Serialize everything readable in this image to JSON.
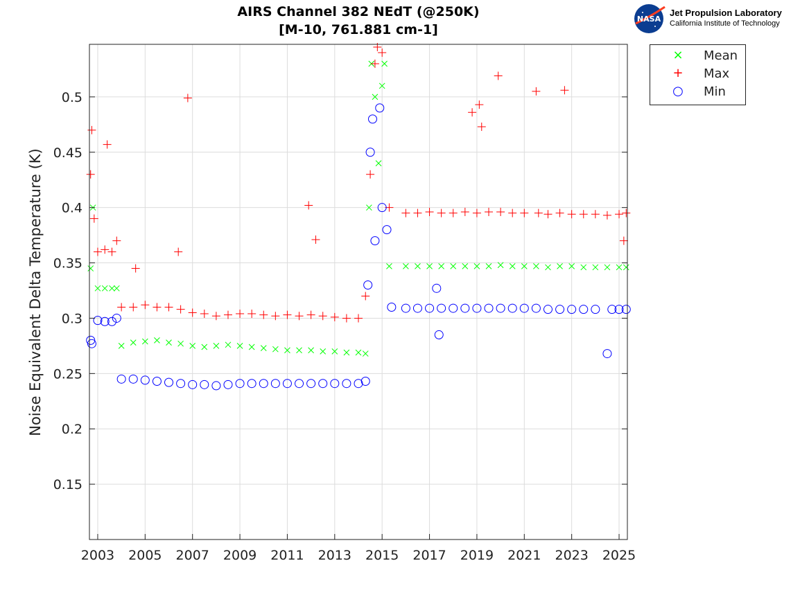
{
  "title_line1": "AIRS Channel 382 NEdT (@250K)",
  "title_line2": "[M-10, 761.881 cm-1]",
  "logo": {
    "nasa_text": "NASA",
    "line1": "Jet Propulsion Laboratory",
    "line2": "California Institute of Technology"
  },
  "chart_data": {
    "type": "scatter",
    "title": "AIRS Channel 382 NEdT (@250K) [M-10, 761.881 cm-1]",
    "xlabel": "",
    "ylabel": "Noise Equivalent Delta Temperature (K)",
    "xlim": [
      2002.65,
      2025.35
    ],
    "ylim": [
      0.1,
      0.5475
    ],
    "xticks": [
      "2003",
      "2005",
      "2007",
      "2009",
      "2011",
      "2013",
      "2015",
      "2017",
      "2019",
      "2021",
      "2023",
      "2025"
    ],
    "yticks": [
      "0.15",
      "0.2",
      "0.25",
      "0.3",
      "0.35",
      "0.4",
      "0.45",
      "0.5"
    ],
    "grid": true,
    "legend_position": "outside-top-right",
    "series": [
      {
        "name": "Mean",
        "marker": "x",
        "color": "#00ff00",
        "points": [
          [
            2002.7,
            0.345
          ],
          [
            2002.8,
            0.4
          ],
          [
            2003.0,
            0.327
          ],
          [
            2003.3,
            0.327
          ],
          [
            2003.6,
            0.327
          ],
          [
            2003.8,
            0.327
          ],
          [
            2004.0,
            0.275
          ],
          [
            2004.5,
            0.278
          ],
          [
            2005.0,
            0.279
          ],
          [
            2005.5,
            0.28
          ],
          [
            2006.0,
            0.278
          ],
          [
            2006.5,
            0.277
          ],
          [
            2007.0,
            0.275
          ],
          [
            2007.5,
            0.274
          ],
          [
            2008.0,
            0.275
          ],
          [
            2008.5,
            0.276
          ],
          [
            2009.0,
            0.275
          ],
          [
            2009.5,
            0.274
          ],
          [
            2010.0,
            0.273
          ],
          [
            2010.5,
            0.272
          ],
          [
            2011.0,
            0.271
          ],
          [
            2011.5,
            0.271
          ],
          [
            2012.0,
            0.271
          ],
          [
            2012.5,
            0.27
          ],
          [
            2013.0,
            0.27
          ],
          [
            2013.5,
            0.269
          ],
          [
            2014.0,
            0.269
          ],
          [
            2014.3,
            0.268
          ],
          [
            2014.45,
            0.4
          ],
          [
            2014.55,
            0.53
          ],
          [
            2014.7,
            0.5
          ],
          [
            2014.85,
            0.44
          ],
          [
            2015.0,
            0.51
          ],
          [
            2015.1,
            0.53
          ],
          [
            2015.3,
            0.347
          ],
          [
            2016.0,
            0.347
          ],
          [
            2016.5,
            0.347
          ],
          [
            2017.0,
            0.347
          ],
          [
            2017.5,
            0.347
          ],
          [
            2018.0,
            0.347
          ],
          [
            2018.5,
            0.347
          ],
          [
            2019.0,
            0.347
          ],
          [
            2019.5,
            0.347
          ],
          [
            2020.0,
            0.348
          ],
          [
            2020.5,
            0.347
          ],
          [
            2021.0,
            0.347
          ],
          [
            2021.5,
            0.347
          ],
          [
            2022.0,
            0.346
          ],
          [
            2022.5,
            0.347
          ],
          [
            2023.0,
            0.347
          ],
          [
            2023.5,
            0.346
          ],
          [
            2024.0,
            0.346
          ],
          [
            2024.5,
            0.346
          ],
          [
            2025.0,
            0.346
          ],
          [
            2025.3,
            0.346
          ]
        ]
      },
      {
        "name": "Max",
        "marker": "+",
        "color": "#ff0000",
        "points": [
          [
            2002.7,
            0.43
          ],
          [
            2002.75,
            0.47
          ],
          [
            2002.85,
            0.39
          ],
          [
            2003.0,
            0.36
          ],
          [
            2003.3,
            0.362
          ],
          [
            2003.4,
            0.457
          ],
          [
            2003.6,
            0.36
          ],
          [
            2003.8,
            0.37
          ],
          [
            2004.0,
            0.31
          ],
          [
            2004.5,
            0.31
          ],
          [
            2004.6,
            0.345
          ],
          [
            2005.0,
            0.312
          ],
          [
            2005.5,
            0.31
          ],
          [
            2006.0,
            0.31
          ],
          [
            2006.4,
            0.36
          ],
          [
            2006.5,
            0.308
          ],
          [
            2006.8,
            0.499
          ],
          [
            2007.0,
            0.305
          ],
          [
            2007.5,
            0.304
          ],
          [
            2008.0,
            0.302
          ],
          [
            2008.5,
            0.303
          ],
          [
            2009.0,
            0.304
          ],
          [
            2009.5,
            0.304
          ],
          [
            2010.0,
            0.303
          ],
          [
            2010.5,
            0.302
          ],
          [
            2011.0,
            0.303
          ],
          [
            2011.5,
            0.302
          ],
          [
            2011.9,
            0.402
          ],
          [
            2012.0,
            0.303
          ],
          [
            2012.2,
            0.371
          ],
          [
            2012.5,
            0.302
          ],
          [
            2013.0,
            0.301
          ],
          [
            2013.5,
            0.3
          ],
          [
            2014.0,
            0.3
          ],
          [
            2014.3,
            0.32
          ],
          [
            2014.5,
            0.43
          ],
          [
            2014.7,
            0.53
          ],
          [
            2014.8,
            0.545
          ],
          [
            2015.0,
            0.54
          ],
          [
            2015.3,
            0.4
          ],
          [
            2016.0,
            0.395
          ],
          [
            2016.5,
            0.395
          ],
          [
            2017.0,
            0.396
          ],
          [
            2017.5,
            0.395
          ],
          [
            2018.0,
            0.395
          ],
          [
            2018.5,
            0.396
          ],
          [
            2018.8,
            0.486
          ],
          [
            2019.0,
            0.395
          ],
          [
            2019.1,
            0.493
          ],
          [
            2019.2,
            0.473
          ],
          [
            2019.5,
            0.396
          ],
          [
            2019.9,
            0.519
          ],
          [
            2020.0,
            0.396
          ],
          [
            2020.5,
            0.395
          ],
          [
            2021.0,
            0.395
          ],
          [
            2021.5,
            0.505
          ],
          [
            2021.6,
            0.395
          ],
          [
            2022.0,
            0.394
          ],
          [
            2022.5,
            0.395
          ],
          [
            2022.7,
            0.506
          ],
          [
            2023.0,
            0.394
          ],
          [
            2023.5,
            0.394
          ],
          [
            2024.0,
            0.394
          ],
          [
            2024.5,
            0.393
          ],
          [
            2025.0,
            0.394
          ],
          [
            2025.2,
            0.37
          ],
          [
            2025.3,
            0.395
          ]
        ]
      },
      {
        "name": "Min",
        "marker": "o",
        "color": "#0000ff",
        "points": [
          [
            2002.7,
            0.28
          ],
          [
            2002.75,
            0.277
          ],
          [
            2003.0,
            0.298
          ],
          [
            2003.3,
            0.297
          ],
          [
            2003.6,
            0.297
          ],
          [
            2003.8,
            0.3
          ],
          [
            2004.0,
            0.245
          ],
          [
            2004.5,
            0.245
          ],
          [
            2005.0,
            0.244
          ],
          [
            2005.5,
            0.243
          ],
          [
            2006.0,
            0.242
          ],
          [
            2006.5,
            0.241
          ],
          [
            2007.0,
            0.24
          ],
          [
            2007.5,
            0.24
          ],
          [
            2008.0,
            0.239
          ],
          [
            2008.5,
            0.24
          ],
          [
            2009.0,
            0.241
          ],
          [
            2009.5,
            0.241
          ],
          [
            2010.0,
            0.241
          ],
          [
            2010.5,
            0.241
          ],
          [
            2011.0,
            0.241
          ],
          [
            2011.5,
            0.241
          ],
          [
            2012.0,
            0.241
          ],
          [
            2012.5,
            0.241
          ],
          [
            2013.0,
            0.241
          ],
          [
            2013.5,
            0.241
          ],
          [
            2014.0,
            0.241
          ],
          [
            2014.3,
            0.243
          ],
          [
            2014.4,
            0.33
          ],
          [
            2014.5,
            0.45
          ],
          [
            2014.6,
            0.48
          ],
          [
            2014.7,
            0.37
          ],
          [
            2014.9,
            0.49
          ],
          [
            2015.0,
            0.4
          ],
          [
            2015.2,
            0.38
          ],
          [
            2015.4,
            0.31
          ],
          [
            2016.0,
            0.309
          ],
          [
            2016.5,
            0.309
          ],
          [
            2017.0,
            0.309
          ],
          [
            2017.3,
            0.327
          ],
          [
            2017.4,
            0.285
          ],
          [
            2017.5,
            0.309
          ],
          [
            2018.0,
            0.309
          ],
          [
            2018.5,
            0.309
          ],
          [
            2019.0,
            0.309
          ],
          [
            2019.5,
            0.309
          ],
          [
            2020.0,
            0.309
          ],
          [
            2020.5,
            0.309
          ],
          [
            2021.0,
            0.309
          ],
          [
            2021.5,
            0.309
          ],
          [
            2022.0,
            0.308
          ],
          [
            2022.5,
            0.308
          ],
          [
            2023.0,
            0.308
          ],
          [
            2023.5,
            0.308
          ],
          [
            2024.0,
            0.308
          ],
          [
            2024.5,
            0.268
          ],
          [
            2024.7,
            0.308
          ],
          [
            2025.0,
            0.308
          ],
          [
            2025.3,
            0.308
          ]
        ]
      }
    ]
  }
}
